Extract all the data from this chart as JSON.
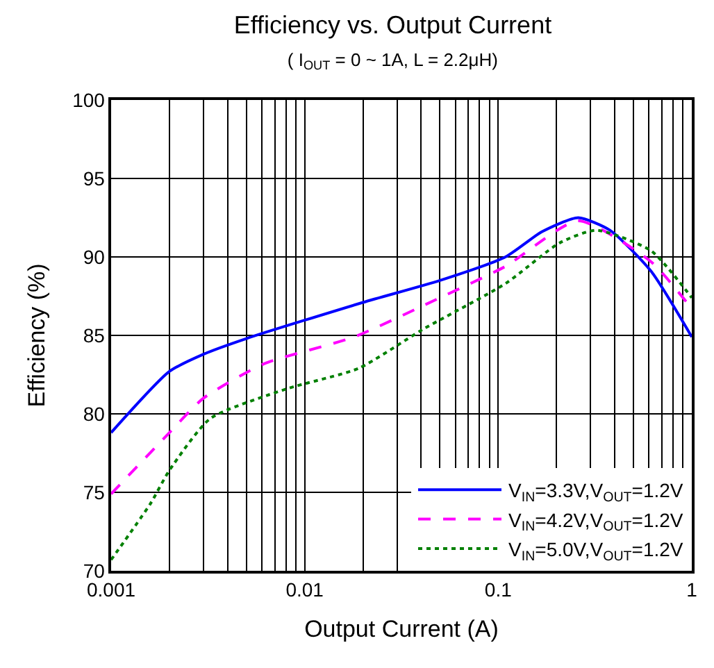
{
  "chart_data": {
    "type": "line",
    "title": "Efficiency vs. Output Current",
    "subtitle": "( I$_{OUT}$ = 0 ~ 1A, L = 2.2μH)",
    "xlabel": "Output Current (A)",
    "ylabel": "Efficiency (%)",
    "log": "x",
    "xlim": [
      0.001,
      1
    ],
    "xticks": [
      0.001,
      0.01,
      0.1,
      1
    ],
    "ylim": [
      70,
      100
    ],
    "yticks": [
      70,
      75,
      80,
      85,
      90,
      95,
      100
    ],
    "grid": true,
    "legend": "bottom right",
    "marker": "none",
    "series": [
      {
        "name": "V$_{IN}$=3.3V,V$_{OUT}$=1.2V",
        "color": "#0000ff",
        "line_style": "solid",
        "x": [
          0.001,
          0.002,
          0.003,
          0.005,
          0.02,
          0.05,
          0.109,
          0.168,
          0.259,
          0.378,
          0.615,
          1
        ],
        "values": [
          78.8,
          82.7,
          83.8,
          84.8,
          87.1,
          88.5,
          90.0,
          91.6,
          92.5,
          91.7,
          89.1,
          84.9
        ]
      },
      {
        "name": "V$_{IN}$=4.2V,V$_{OUT}$=1.2V",
        "color": "#ff00ff",
        "line_style": "dashed",
        "x": [
          0.001,
          0.002,
          0.003,
          0.0062,
          0.018,
          0.05,
          0.109,
          0.259,
          0.615,
          1
        ],
        "values": [
          74.9,
          78.8,
          81.0,
          83.2,
          84.9,
          87.4,
          89.4,
          92.3,
          89.7,
          86.7
        ]
      },
      {
        "name": "V$_{IN}$=5.0V,V$_{OUT}$=1.2V",
        "color": "#008000",
        "line_style": "dotted",
        "x": [
          0.001,
          0.0016,
          0.002,
          0.00325,
          0.0081,
          0.019,
          0.041,
          0.109,
          0.208,
          0.321,
          0.615,
          1
        ],
        "values": [
          70.7,
          74.3,
          76.4,
          79.7,
          81.6,
          82.9,
          85.4,
          88.3,
          90.9,
          91.7,
          90.4,
          87.4
        ]
      }
    ]
  }
}
